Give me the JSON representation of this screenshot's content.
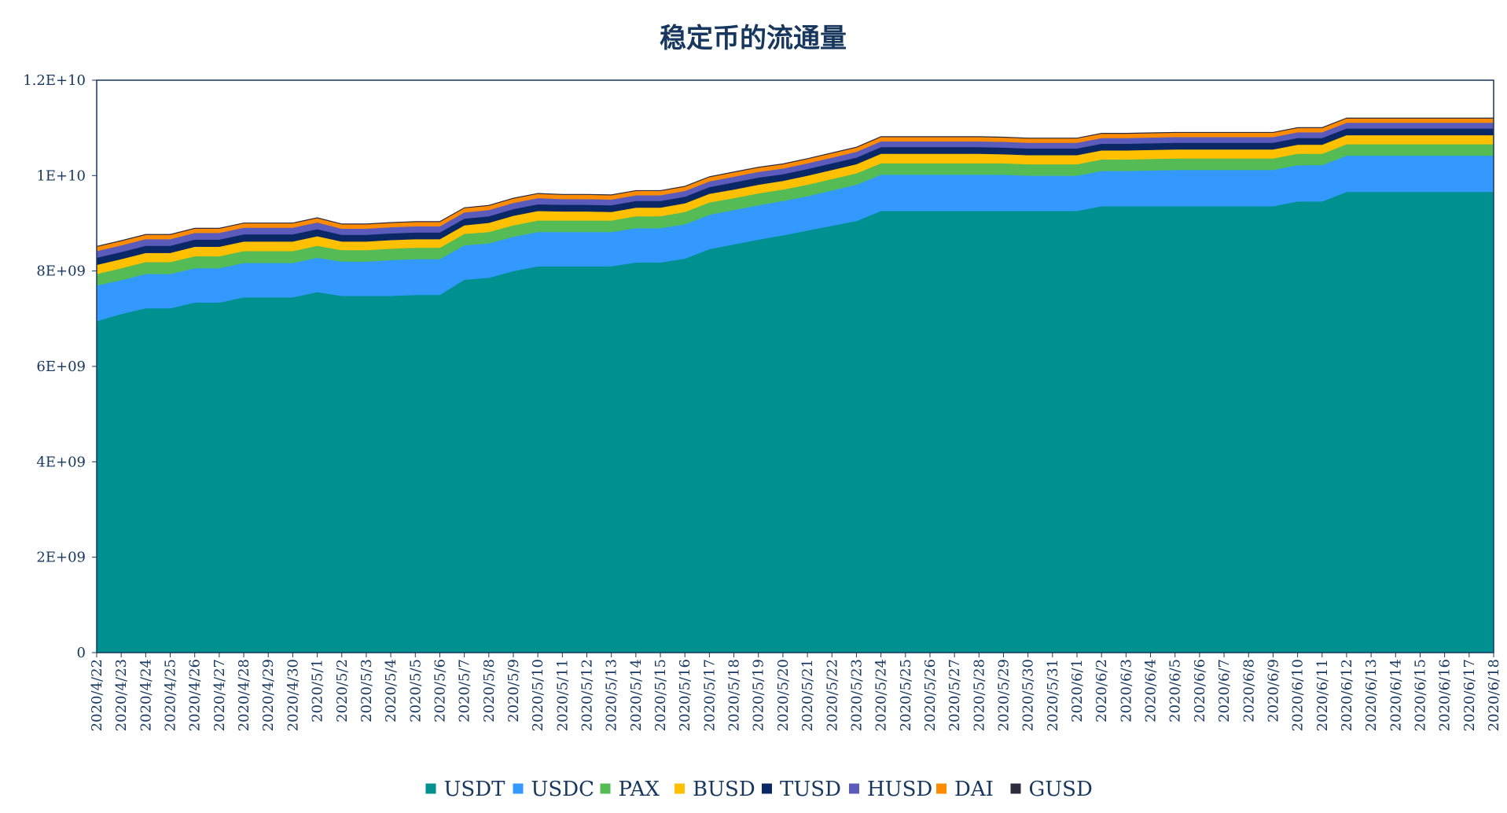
{
  "chart_data": {
    "type": "area",
    "stacked": true,
    "title": "稳定币的流通量",
    "xlabel": "",
    "ylabel": "",
    "ylim": [
      0,
      12000000000
    ],
    "y_ticks": [
      {
        "value": 0,
        "label": "0"
      },
      {
        "value": 2000000000,
        "label": "2E+09"
      },
      {
        "value": 4000000000,
        "label": "4E+09"
      },
      {
        "value": 6000000000,
        "label": "6E+09"
      },
      {
        "value": 8000000000,
        "label": "8E+09"
      },
      {
        "value": 10000000000,
        "label": "1E+10"
      },
      {
        "value": 12000000000,
        "label": "1.2E+10"
      }
    ],
    "grid": false,
    "legend_position": "bottom",
    "categories": [
      "2020/4/22",
      "2020/4/23",
      "2020/4/24",
      "2020/4/25",
      "2020/4/26",
      "2020/4/27",
      "2020/4/28",
      "2020/4/29",
      "2020/4/30",
      "2020/5/1",
      "2020/5/2",
      "2020/5/3",
      "2020/5/4",
      "2020/5/5",
      "2020/5/6",
      "2020/5/7",
      "2020/5/8",
      "2020/5/9",
      "2020/5/10",
      "2020/5/11",
      "2020/5/12",
      "2020/5/13",
      "2020/5/14",
      "2020/5/15",
      "2020/5/16",
      "2020/5/17",
      "2020/5/18",
      "2020/5/19",
      "2020/5/20",
      "2020/5/21",
      "2020/5/22",
      "2020/5/23",
      "2020/5/24",
      "2020/5/25",
      "2020/5/26",
      "2020/5/27",
      "2020/5/28",
      "2020/5/29",
      "2020/5/30",
      "2020/5/31",
      "2020/6/1",
      "2020/6/2",
      "2020/6/3",
      "2020/6/4",
      "2020/6/5",
      "2020/6/6",
      "2020/6/7",
      "2020/6/8",
      "2020/6/9",
      "2020/6/10",
      "2020/6/11",
      "2020/6/12",
      "2020/6/13",
      "2020/6/14",
      "2020/6/15",
      "2020/6/16",
      "2020/6/17",
      "2020/6/18"
    ],
    "series": [
      {
        "name": "USDT",
        "color": "#009090",
        "values": [
          6950000000,
          7100000000,
          7220000000,
          7220000000,
          7340000000,
          7340000000,
          7450000000,
          7450000000,
          7450000000,
          7560000000,
          7480000000,
          7480000000,
          7480000000,
          7500000000,
          7500000000,
          7820000000,
          7860000000,
          8000000000,
          8100000000,
          8100000000,
          8100000000,
          8100000000,
          8180000000,
          8180000000,
          8260000000,
          8460000000,
          8560000000,
          8660000000,
          8750000000,
          8850000000,
          8950000000,
          9050000000,
          9260000000,
          9260000000,
          9260000000,
          9260000000,
          9260000000,
          9260000000,
          9260000000,
          9260000000,
          9260000000,
          9360000000,
          9360000000,
          9360000000,
          9360000000,
          9360000000,
          9360000000,
          9360000000,
          9360000000,
          9460000000,
          9460000000,
          9660000000,
          9660000000,
          9660000000,
          9660000000,
          9660000000,
          9660000000,
          9660000000
        ]
      },
      {
        "name": "USDC",
        "color": "#3399ff",
        "values": [
          750000000,
          710000000,
          720000000,
          720000000,
          720000000,
          720000000,
          720000000,
          720000000,
          720000000,
          720000000,
          720000000,
          720000000,
          750000000,
          750000000,
          750000000,
          720000000,
          720000000,
          720000000,
          720000000,
          720000000,
          720000000,
          720000000,
          720000000,
          720000000,
          720000000,
          720000000,
          720000000,
          720000000,
          720000000,
          720000000,
          740000000,
          760000000,
          760000000,
          760000000,
          760000000,
          760000000,
          760000000,
          760000000,
          740000000,
          740000000,
          740000000,
          740000000,
          740000000,
          750000000,
          760000000,
          760000000,
          760000000,
          760000000,
          760000000,
          760000000,
          760000000,
          760000000,
          760000000,
          760000000,
          760000000,
          760000000,
          760000000,
          760000000
        ]
      },
      {
        "name": "PAX",
        "color": "#55bb55",
        "values": [
          240000000,
          250000000,
          250000000,
          250000000,
          250000000,
          250000000,
          250000000,
          250000000,
          250000000,
          250000000,
          240000000,
          240000000,
          240000000,
          240000000,
          240000000,
          240000000,
          240000000,
          240000000,
          240000000,
          240000000,
          240000000,
          240000000,
          250000000,
          250000000,
          260000000,
          260000000,
          250000000,
          250000000,
          240000000,
          240000000,
          240000000,
          240000000,
          240000000,
          240000000,
          240000000,
          240000000,
          240000000,
          240000000,
          240000000,
          240000000,
          240000000,
          240000000,
          240000000,
          240000000,
          240000000,
          240000000,
          240000000,
          240000000,
          240000000,
          240000000,
          240000000,
          240000000,
          240000000,
          240000000,
          240000000,
          240000000,
          240000000,
          240000000
        ]
      },
      {
        "name": "BUSD",
        "color": "#ffc000",
        "values": [
          190000000,
          190000000,
          190000000,
          190000000,
          200000000,
          200000000,
          200000000,
          200000000,
          200000000,
          200000000,
          180000000,
          180000000,
          180000000,
          180000000,
          180000000,
          180000000,
          190000000,
          200000000,
          200000000,
          190000000,
          190000000,
          180000000,
          180000000,
          180000000,
          180000000,
          180000000,
          180000000,
          180000000,
          180000000,
          190000000,
          190000000,
          190000000,
          200000000,
          200000000,
          200000000,
          200000000,
          200000000,
          190000000,
          190000000,
          190000000,
          190000000,
          190000000,
          190000000,
          190000000,
          190000000,
          190000000,
          190000000,
          190000000,
          190000000,
          190000000,
          190000000,
          190000000,
          190000000,
          190000000,
          190000000,
          190000000,
          190000000,
          190000000
        ]
      },
      {
        "name": "TUSD",
        "color": "#0a2865",
        "values": [
          150000000,
          150000000,
          150000000,
          150000000,
          150000000,
          150000000,
          150000000,
          150000000,
          150000000,
          150000000,
          140000000,
          140000000,
          140000000,
          140000000,
          140000000,
          140000000,
          140000000,
          140000000,
          140000000,
          140000000,
          140000000,
          140000000,
          140000000,
          140000000,
          140000000,
          140000000,
          150000000,
          150000000,
          140000000,
          140000000,
          140000000,
          140000000,
          140000000,
          140000000,
          140000000,
          140000000,
          140000000,
          140000000,
          140000000,
          140000000,
          140000000,
          140000000,
          140000000,
          140000000,
          140000000,
          140000000,
          140000000,
          140000000,
          140000000,
          140000000,
          140000000,
          140000000,
          140000000,
          140000000,
          140000000,
          140000000,
          140000000,
          140000000
        ]
      },
      {
        "name": "HUSD",
        "color": "#5b5bbb",
        "values": [
          140000000,
          140000000,
          140000000,
          140000000,
          140000000,
          140000000,
          140000000,
          140000000,
          140000000,
          140000000,
          130000000,
          130000000,
          130000000,
          130000000,
          130000000,
          130000000,
          130000000,
          130000000,
          130000000,
          120000000,
          120000000,
          120000000,
          120000000,
          120000000,
          120000000,
          120000000,
          120000000,
          120000000,
          120000000,
          120000000,
          120000000,
          120000000,
          120000000,
          120000000,
          120000000,
          120000000,
          120000000,
          120000000,
          120000000,
          120000000,
          120000000,
          120000000,
          120000000,
          120000000,
          120000000,
          120000000,
          120000000,
          120000000,
          120000000,
          120000000,
          120000000,
          120000000,
          120000000,
          120000000,
          120000000,
          120000000,
          120000000,
          120000000
        ]
      },
      {
        "name": "DAI",
        "color": "#ff8c00",
        "values": [
          90000000,
          90000000,
          90000000,
          90000000,
          90000000,
          90000000,
          90000000,
          90000000,
          90000000,
          90000000,
          90000000,
          90000000,
          90000000,
          90000000,
          90000000,
          90000000,
          90000000,
          90000000,
          90000000,
          90000000,
          90000000,
          90000000,
          90000000,
          90000000,
          90000000,
          90000000,
          90000000,
          90000000,
          90000000,
          90000000,
          90000000,
          90000000,
          90000000,
          90000000,
          90000000,
          90000000,
          90000000,
          90000000,
          90000000,
          90000000,
          90000000,
          90000000,
          90000000,
          90000000,
          90000000,
          90000000,
          90000000,
          90000000,
          90000000,
          90000000,
          90000000,
          90000000,
          90000000,
          90000000,
          90000000,
          90000000,
          90000000,
          90000000
        ]
      },
      {
        "name": "GUSD",
        "color": "#2c2c3c",
        "values": [
          10000000,
          10000000,
          10000000,
          10000000,
          10000000,
          10000000,
          10000000,
          10000000,
          10000000,
          10000000,
          10000000,
          10000000,
          10000000,
          10000000,
          10000000,
          10000000,
          10000000,
          10000000,
          10000000,
          10000000,
          10000000,
          10000000,
          10000000,
          10000000,
          10000000,
          10000000,
          10000000,
          10000000,
          10000000,
          10000000,
          10000000,
          10000000,
          10000000,
          10000000,
          10000000,
          10000000,
          10000000,
          10000000,
          10000000,
          10000000,
          10000000,
          10000000,
          10000000,
          10000000,
          10000000,
          10000000,
          10000000,
          10000000,
          10000000,
          10000000,
          10000000,
          10000000,
          10000000,
          10000000,
          10000000,
          10000000,
          10000000,
          10000000
        ]
      }
    ]
  }
}
